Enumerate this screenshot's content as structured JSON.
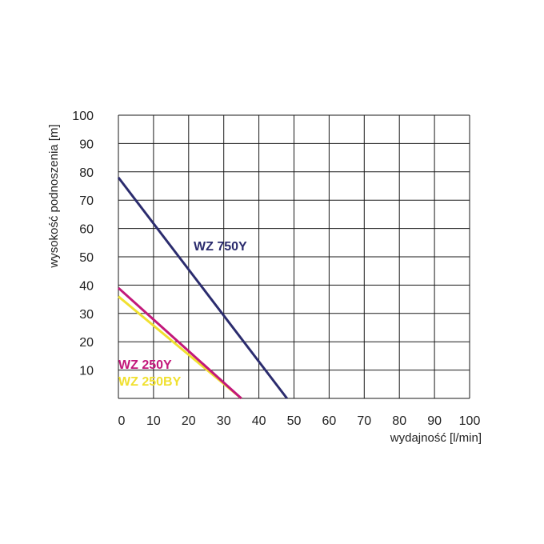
{
  "chart_data": {
    "type": "line",
    "xlabel": "wydajność [l/min]",
    "ylabel": "wysokość podnoszenia [m]",
    "xlim": [
      0,
      100
    ],
    "ylim": [
      0,
      100
    ],
    "x_ticks": [
      "0",
      "10",
      "20",
      "30",
      "40",
      "50",
      "60",
      "70",
      "80",
      "90",
      "100"
    ],
    "y_ticks": [
      "10",
      "20",
      "30",
      "40",
      "50",
      "60",
      "70",
      "80",
      "90",
      "100"
    ],
    "grid": true,
    "series": [
      {
        "name": "WZ 750Y",
        "color": "#2b2c6e",
        "x": [
          0,
          48
        ],
        "y": [
          78,
          0
        ]
      },
      {
        "name": "WZ 250Y",
        "color": "#c2187a",
        "x": [
          0,
          35
        ],
        "y": [
          39,
          0
        ]
      },
      {
        "name": "WZ 250BY",
        "color": "#f0e030",
        "x": [
          0,
          35
        ],
        "y": [
          36,
          0
        ]
      }
    ]
  }
}
